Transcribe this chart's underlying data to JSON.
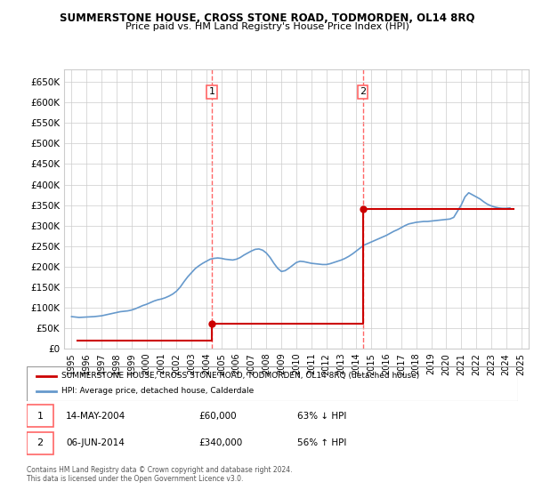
{
  "title": "SUMMERSTONE HOUSE, CROSS STONE ROAD, TODMORDEN, OL14 8RQ",
  "subtitle": "Price paid vs. HM Land Registry's House Price Index (HPI)",
  "legend_label_red": "SUMMERSTONE HOUSE, CROSS STONE ROAD, TODMORDEN, OL14 8RQ (detached house)",
  "legend_label_blue": "HPI: Average price, detached house, Calderdale",
  "transaction1": {
    "num": "1",
    "date": "14-MAY-2004",
    "price": "£60,000",
    "hpi": "63% ↓ HPI"
  },
  "transaction2": {
    "num": "2",
    "date": "06-JUN-2014",
    "price": "£340,000",
    "hpi": "56% ↑ HPI"
  },
  "footer": "Contains HM Land Registry data © Crown copyright and database right 2024.\nThis data is licensed under the Open Government Licence v3.0.",
  "red_color": "#cc0000",
  "blue_color": "#6699cc",
  "grid_color": "#cccccc",
  "background_color": "#ffffff",
  "vline_color": "#ff6666",
  "vline1_x": 2004.37,
  "vline2_x": 2014.43,
  "ylim": [
    0,
    680000
  ],
  "xlim": [
    1994.5,
    2025.5
  ],
  "yticks": [
    0,
    50000,
    100000,
    150000,
    200000,
    250000,
    300000,
    350000,
    400000,
    450000,
    500000,
    550000,
    600000,
    650000
  ],
  "xticks": [
    1995,
    1996,
    1997,
    1998,
    1999,
    2000,
    2001,
    2002,
    2003,
    2004,
    2005,
    2006,
    2007,
    2008,
    2009,
    2010,
    2011,
    2012,
    2013,
    2014,
    2015,
    2016,
    2017,
    2018,
    2019,
    2020,
    2021,
    2022,
    2023,
    2024,
    2025
  ],
  "hpi_data": {
    "years": [
      1995.0,
      1995.25,
      1995.5,
      1995.75,
      1996.0,
      1996.25,
      1996.5,
      1996.75,
      1997.0,
      1997.25,
      1997.5,
      1997.75,
      1998.0,
      1998.25,
      1998.5,
      1998.75,
      1999.0,
      1999.25,
      1999.5,
      1999.75,
      2000.0,
      2000.25,
      2000.5,
      2000.75,
      2001.0,
      2001.25,
      2001.5,
      2001.75,
      2002.0,
      2002.25,
      2002.5,
      2002.75,
      2003.0,
      2003.25,
      2003.5,
      2003.75,
      2004.0,
      2004.25,
      2004.5,
      2004.75,
      2005.0,
      2005.25,
      2005.5,
      2005.75,
      2006.0,
      2006.25,
      2006.5,
      2006.75,
      2007.0,
      2007.25,
      2007.5,
      2007.75,
      2008.0,
      2008.25,
      2008.5,
      2008.75,
      2009.0,
      2009.25,
      2009.5,
      2009.75,
      2010.0,
      2010.25,
      2010.5,
      2010.75,
      2011.0,
      2011.25,
      2011.5,
      2011.75,
      2012.0,
      2012.25,
      2012.5,
      2012.75,
      2013.0,
      2013.25,
      2013.5,
      2013.75,
      2014.0,
      2014.25,
      2014.5,
      2014.75,
      2015.0,
      2015.25,
      2015.5,
      2015.75,
      2016.0,
      2016.25,
      2016.5,
      2016.75,
      2017.0,
      2017.25,
      2017.5,
      2017.75,
      2018.0,
      2018.25,
      2018.5,
      2018.75,
      2019.0,
      2019.25,
      2019.5,
      2019.75,
      2020.0,
      2020.25,
      2020.5,
      2020.75,
      2021.0,
      2021.25,
      2021.5,
      2021.75,
      2022.0,
      2022.25,
      2022.5,
      2022.75,
      2023.0,
      2023.25,
      2023.5,
      2023.75,
      2024.0,
      2024.25
    ],
    "values": [
      78000,
      77000,
      76000,
      76500,
      77000,
      77500,
      78000,
      79000,
      80000,
      82000,
      84000,
      86000,
      88000,
      90000,
      91000,
      92000,
      94000,
      97000,
      101000,
      105000,
      108000,
      112000,
      116000,
      119000,
      121000,
      124000,
      128000,
      133000,
      140000,
      150000,
      163000,
      175000,
      185000,
      195000,
      202000,
      208000,
      213000,
      218000,
      220000,
      221000,
      220000,
      218000,
      217000,
      216000,
      218000,
      222000,
      228000,
      233000,
      238000,
      242000,
      243000,
      240000,
      233000,
      222000,
      208000,
      196000,
      188000,
      190000,
      196000,
      203000,
      210000,
      213000,
      212000,
      210000,
      208000,
      207000,
      206000,
      205000,
      205000,
      207000,
      210000,
      213000,
      216000,
      220000,
      225000,
      231000,
      238000,
      245000,
      252000,
      256000,
      260000,
      264000,
      268000,
      272000,
      276000,
      281000,
      286000,
      290000,
      295000,
      300000,
      304000,
      306000,
      308000,
      309000,
      310000,
      310000,
      311000,
      312000,
      313000,
      314000,
      315000,
      316000,
      320000,
      335000,
      350000,
      370000,
      380000,
      375000,
      370000,
      365000,
      358000,
      352000,
      348000,
      345000,
      343000,
      342000,
      342000,
      343000
    ]
  },
  "price_paid_data": {
    "years": [
      1995.37,
      2004.37,
      2014.43
    ],
    "values": [
      20000,
      60000,
      340000
    ]
  },
  "red_line_data": {
    "years": [
      1995.37,
      2004.37,
      2004.37,
      2014.43,
      2014.43,
      2024.5
    ],
    "values": [
      20000,
      20000,
      60000,
      60000,
      340000,
      340000
    ]
  }
}
